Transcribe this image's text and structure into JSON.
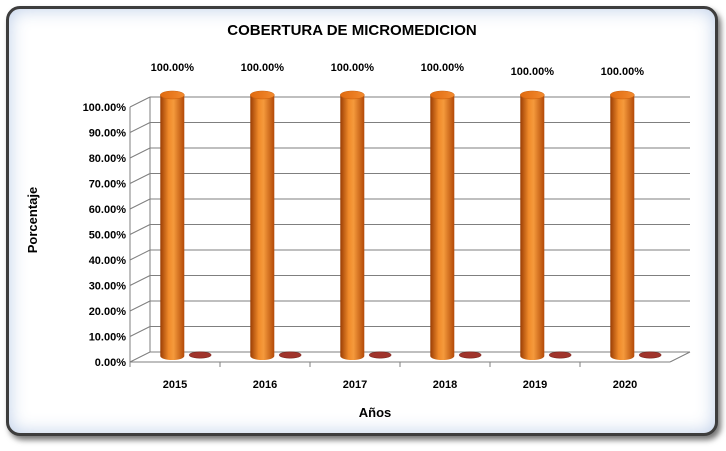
{
  "chart_data": {
    "type": "bar",
    "title": "COBERTURA DE MICROMEDICION",
    "xlabel": "Años",
    "ylabel": "Porcentaje",
    "categories": [
      "2015",
      "2016",
      "2017",
      "2018",
      "2019",
      "2020"
    ],
    "series": [
      {
        "values": [
          100,
          100,
          100,
          100,
          100,
          100
        ],
        "color": "#E87511"
      },
      {
        "values": [
          0,
          0,
          0,
          0,
          0,
          0
        ],
        "color": "#A0342C"
      }
    ],
    "data_labels": [
      "100.00%",
      "100.00%",
      "100.00%",
      "100.00%",
      "100.00%",
      "100.00%"
    ],
    "ylim": [
      0,
      100
    ],
    "yticks": [
      "0.00%",
      "10.00%",
      "20.00%",
      "30.00%",
      "40.00%",
      "50.00%",
      "60.00%",
      "70.00%",
      "80.00%",
      "90.00%",
      "100.00%"
    ],
    "grid": true,
    "legend": "none",
    "style": "3d-cylinder"
  }
}
